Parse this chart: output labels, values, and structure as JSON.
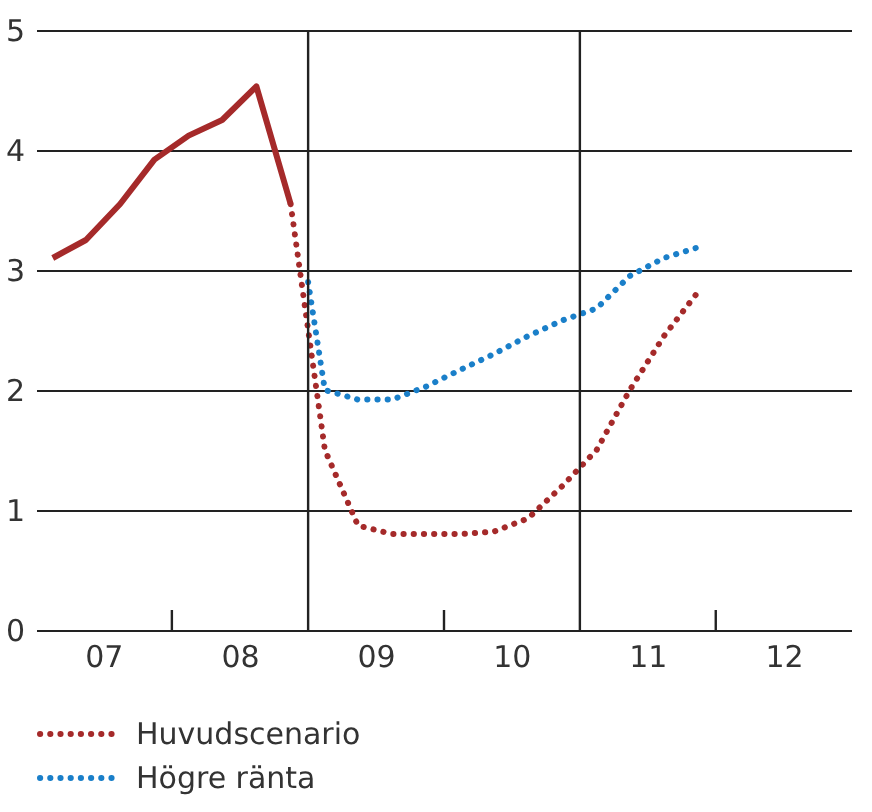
{
  "chart_data": {
    "type": "line",
    "series": [
      {
        "color": "#a52a2a",
        "line_style": "solid",
        "x": [
          "2007-02-15",
          "2007-05-15",
          "2007-08-15",
          "2007-11-15",
          "2008-02-15",
          "2008-05-15",
          "2008-08-15",
          "2008-11-15"
        ],
        "values": [
          3.1,
          3.25,
          3.55,
          3.92,
          4.12,
          4.25,
          4.53,
          3.55
        ]
      },
      {
        "name": "Huvudscenario",
        "color": "#a52a2a",
        "line_style": "dotted",
        "x": [
          "2008-11-15",
          "2009-02-15",
          "2009-05-15",
          "2009-08-15",
          "2009-11-15",
          "2010-02-15",
          "2010-05-15",
          "2010-08-15",
          "2010-11-15",
          "2011-02-15",
          "2011-05-15",
          "2011-08-15",
          "2011-11-15"
        ],
        "values": [
          3.55,
          1.5,
          0.87,
          0.8,
          0.8,
          0.8,
          0.82,
          0.93,
          1.2,
          1.5,
          2.0,
          2.45,
          2.82
        ]
      },
      {
        "name": "Högre ränta",
        "color": "#1a7fc9",
        "line_style": "dotted",
        "x": [
          "2009-01-01",
          "2009-02-15",
          "2009-05-15",
          "2009-08-15",
          "2009-11-15",
          "2010-02-15",
          "2010-05-15",
          "2010-08-15",
          "2010-11-15",
          "2011-02-15",
          "2011-05-15",
          "2011-08-15",
          "2011-11-15"
        ],
        "values": [
          2.9,
          2.0,
          1.92,
          1.92,
          2.03,
          2.17,
          2.3,
          2.45,
          2.58,
          2.68,
          2.95,
          3.1,
          3.19
        ]
      }
    ],
    "xlim": [
      "2007-01-01",
      "2013-01-01"
    ],
    "xticks": [
      {
        "value": "2007-07-01",
        "label": "07"
      },
      {
        "value": "2008-07-01",
        "label": "08"
      },
      {
        "value": "2009-07-01",
        "label": "09"
      },
      {
        "value": "2010-07-01",
        "label": "10"
      },
      {
        "value": "2011-07-01",
        "label": "11"
      },
      {
        "value": "2012-07-01",
        "label": "12"
      },
      {
        "value": "2008-01-01",
        "label": null
      },
      {
        "value": "2010-01-01",
        "label": null
      },
      {
        "value": "2012-01-01",
        "label": null
      }
    ],
    "ylim": [
      0,
      5
    ],
    "yticks": [
      0,
      1,
      2,
      3,
      4,
      5
    ],
    "ref_lines": [
      {
        "axis": "x",
        "value": "2009-01-01",
        "label": null
      },
      {
        "axis": "x",
        "value": "2011-01-01",
        "label": null
      }
    ],
    "grid": "y",
    "legend": "bottom",
    "marker": "none"
  }
}
